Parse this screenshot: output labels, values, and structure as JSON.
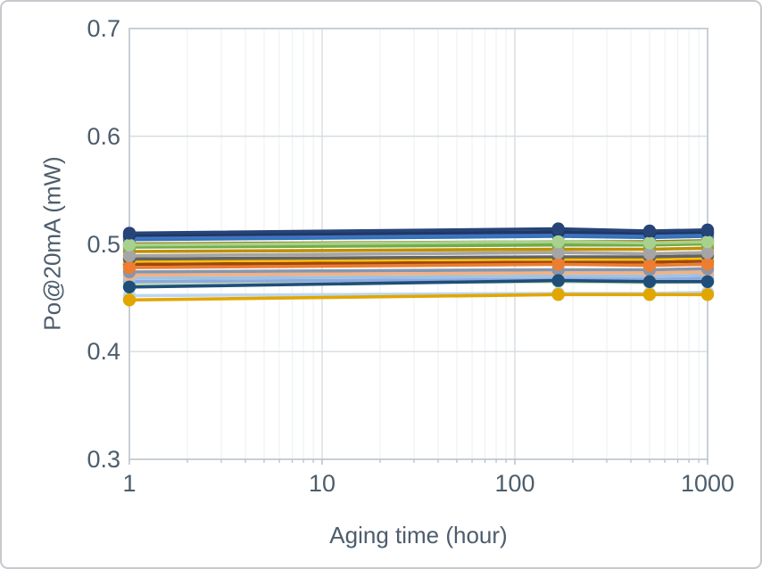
{
  "chart_data": {
    "type": "line",
    "title": "",
    "xlabel": "Aging time (hour)",
    "ylabel": "Po@20mA (mW)",
    "x_scale": "log",
    "xlim": [
      1,
      1000
    ],
    "ylim": [
      0.3,
      0.7
    ],
    "x_ticks": [
      1,
      10,
      100,
      1000
    ],
    "x_minor": [
      2,
      3,
      4,
      5,
      6,
      7,
      8,
      9,
      20,
      30,
      40,
      50,
      60,
      70,
      80,
      90,
      200,
      300,
      400,
      500,
      600,
      700,
      800,
      900
    ],
    "y_ticks": [
      0.3,
      0.4,
      0.5,
      0.6,
      0.7
    ],
    "grid": "x-major, x-minor, y-major",
    "legend_position": "none",
    "marker": "circle",
    "x": [
      1,
      168,
      500,
      1000
    ],
    "colors": {
      "grid_major": "#d9dde1",
      "grid_minor": "#eef1f3",
      "axis_border": "#c9cfd6",
      "tick_mark": "#b3bcc4",
      "axis_text": "#4d5d6c"
    },
    "series": [
      {
        "color": "#BDD7EE",
        "values": [
          0.452,
          0.454,
          0.454,
          0.455
        ]
      },
      {
        "color": "#C5E0B4",
        "values": [
          0.463,
          0.465,
          0.464,
          0.465
        ]
      },
      {
        "color": "#8FAADC",
        "values": [
          0.465,
          0.467,
          0.467,
          0.468
        ]
      },
      {
        "color": "#9DC3E6",
        "values": [
          0.468,
          0.47,
          0.47,
          0.471
        ]
      },
      {
        "color": "#F4B183",
        "values": [
          0.471,
          0.473,
          0.473,
          0.474
        ]
      },
      {
        "color": "#8497B0",
        "values": [
          0.474,
          0.476,
          0.476,
          0.477
        ]
      },
      {
        "color": "#9E480E",
        "values": [
          0.481,
          0.483,
          0.483,
          0.484
        ]
      },
      {
        "color": "#FFC000",
        "values": [
          0.484,
          0.486,
          0.486,
          0.487
        ]
      },
      {
        "color": "#636363",
        "values": [
          0.486,
          0.488,
          0.488,
          0.489
        ]
      },
      {
        "color": "#BF8F00",
        "values": [
          0.493,
          0.495,
          0.495,
          0.496
        ]
      },
      {
        "color": "#70AD47",
        "values": [
          0.497,
          0.499,
          0.499,
          0.5
        ]
      },
      {
        "color": "#997300",
        "values": [
          0.5,
          0.502,
          0.502,
          0.503
        ]
      },
      {
        "color": "#2E75B6",
        "values": [
          0.504,
          0.507,
          0.506,
          0.507
        ]
      },
      {
        "color": "#4472C4",
        "values": [
          0.506,
          0.509,
          0.508,
          0.509
        ]
      },
      {
        "color": "#203864",
        "values": [
          0.508,
          0.511,
          0.51,
          0.511
        ]
      },
      {
        "color": "#ED7D31",
        "values": [
          0.478,
          0.481,
          0.48,
          0.481
        ]
      },
      {
        "color": "#A5A5A5",
        "values": [
          0.489,
          0.492,
          0.491,
          0.492
        ]
      },
      {
        "color": "#A9D18E",
        "values": [
          0.499,
          0.502,
          0.501,
          0.502
        ]
      },
      {
        "color": "#264478",
        "values": [
          0.51,
          0.514,
          0.512,
          0.513
        ]
      },
      {
        "color": "#1F4E79",
        "values": [
          0.46,
          0.466,
          0.465,
          0.465
        ]
      },
      {
        "color": "#E2A600",
        "values": [
          0.448,
          0.453,
          0.453,
          0.453
        ]
      }
    ]
  }
}
